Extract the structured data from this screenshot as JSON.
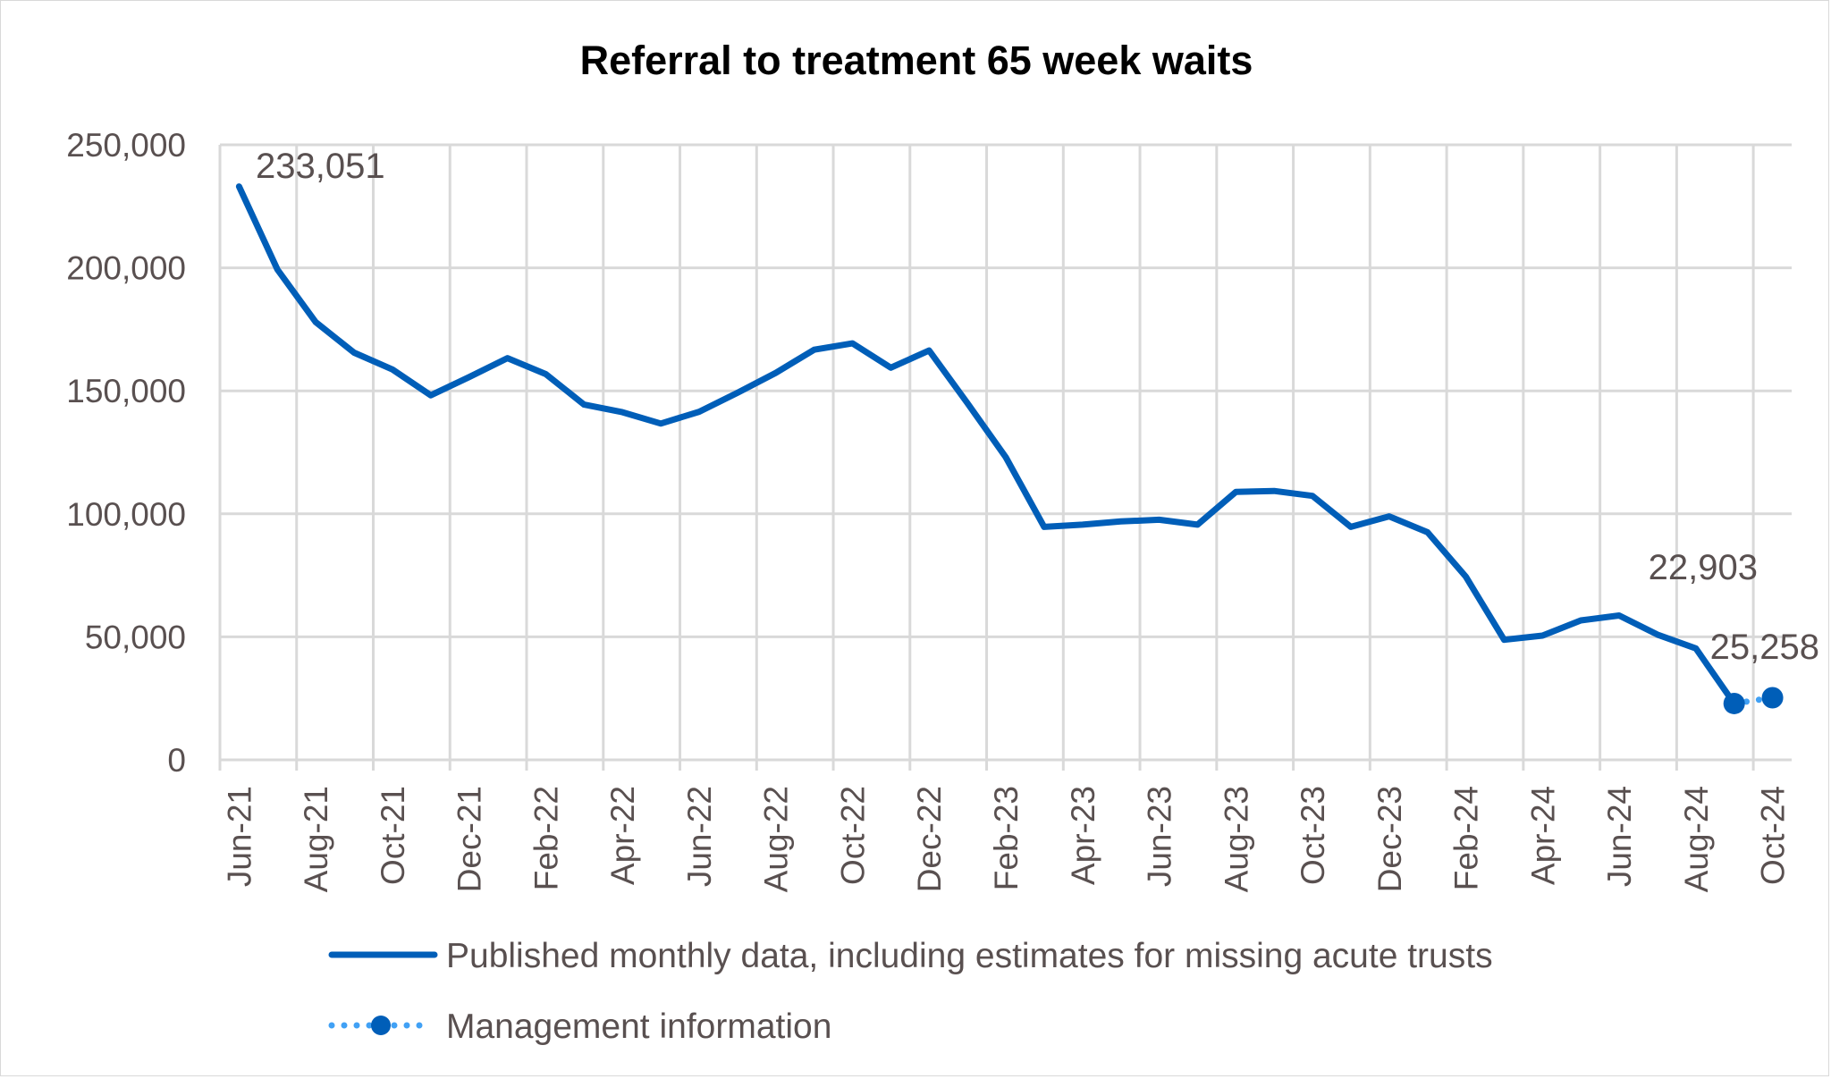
{
  "chart_data": {
    "type": "line",
    "title": "Referral to treatment 65 week waits",
    "xlabel": "",
    "ylabel": "",
    "ylim": [
      0,
      250000
    ],
    "yticks": [
      "0",
      "50,000",
      "100,000",
      "150,000",
      "200,000",
      "250,000"
    ],
    "ytick_values": [
      0,
      50000,
      100000,
      150000,
      200000,
      250000
    ],
    "grid": true,
    "legend_placement": "bottom",
    "categories": [
      "Jun-21",
      "Jul-21",
      "Aug-21",
      "Sep-21",
      "Oct-21",
      "Nov-21",
      "Dec-21",
      "Jan-22",
      "Feb-22",
      "Mar-22",
      "Apr-22",
      "May-22",
      "Jun-22",
      "Jul-22",
      "Aug-22",
      "Sep-22",
      "Oct-22",
      "Nov-22",
      "Dec-22",
      "Jan-23",
      "Feb-23",
      "Mar-23",
      "Apr-23",
      "May-23",
      "Jun-23",
      "Jul-23",
      "Aug-23",
      "Sep-23",
      "Oct-23",
      "Nov-23",
      "Dec-23",
      "Jan-24",
      "Feb-24",
      "Mar-24",
      "Apr-24",
      "May-24",
      "Jun-24",
      "Jul-24",
      "Aug-24",
      "Sep-24",
      "Oct-24"
    ],
    "xtick_labels": [
      "Jun-21",
      "Aug-21",
      "Oct-21",
      "Dec-21",
      "Feb-22",
      "Apr-22",
      "Jun-22",
      "Aug-22",
      "Oct-22",
      "Dec-22",
      "Feb-23",
      "Apr-23",
      "Jun-23",
      "Aug-23",
      "Oct-23",
      "Dec-23",
      "Feb-24",
      "Apr-24",
      "Jun-24",
      "Aug-24",
      "Oct-24"
    ],
    "series": [
      {
        "name": "Published monthly data, including estimates for missing acute trusts",
        "color": "#005EB8",
        "style": "solid",
        "values": [
          233051,
          199300,
          177900,
          165500,
          158700,
          148200,
          155600,
          163300,
          156800,
          144400,
          141300,
          136700,
          141500,
          149200,
          157300,
          166700,
          169300,
          159400,
          166400,
          145000,
          123000,
          94700,
          95600,
          96900,
          97600,
          95600,
          108900,
          109300,
          107300,
          94700,
          99000,
          92500,
          74500,
          48800,
          50500,
          56700,
          58700,
          50900,
          45300,
          22903,
          null
        ]
      },
      {
        "name": "Management information",
        "color": "#41A1F5",
        "marker_color": "#005EB8",
        "style": "dotted-with-markers",
        "values": [
          null,
          null,
          null,
          null,
          null,
          null,
          null,
          null,
          null,
          null,
          null,
          null,
          null,
          null,
          null,
          null,
          null,
          null,
          null,
          null,
          null,
          null,
          null,
          null,
          null,
          null,
          null,
          null,
          null,
          null,
          null,
          null,
          null,
          null,
          null,
          null,
          null,
          null,
          null,
          22903,
          25258
        ]
      }
    ],
    "data_labels": [
      {
        "category": "Jun-21",
        "text": "233,051"
      },
      {
        "category": "Sep-24",
        "text": "22,903"
      },
      {
        "category": "Oct-24",
        "text": "25,258"
      }
    ]
  }
}
